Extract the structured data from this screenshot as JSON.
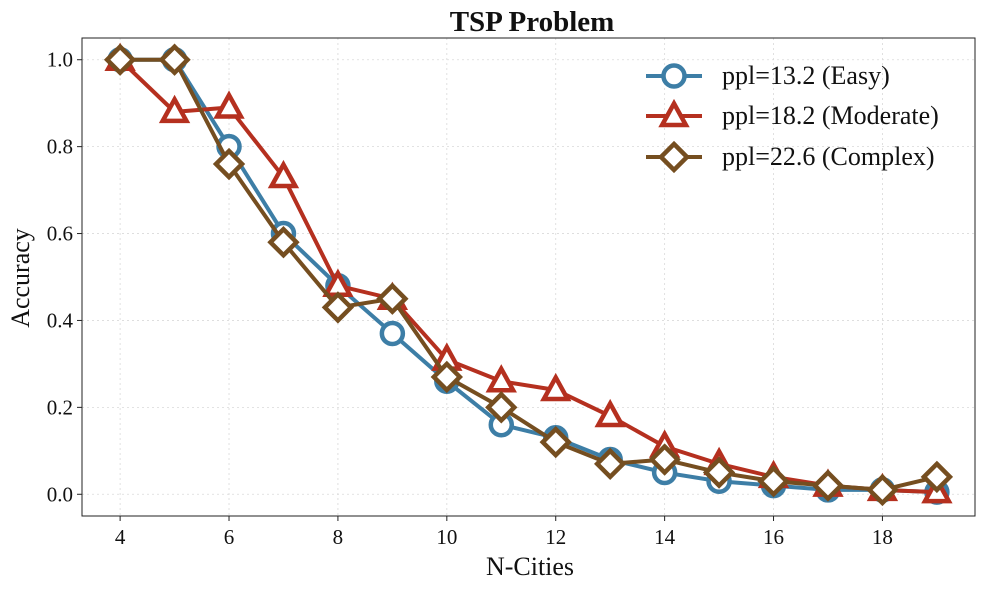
{
  "chart_data": {
    "type": "line",
    "title": "TSP Problem",
    "xlabel": "N-Cities",
    "ylabel": "Accuracy",
    "xlim": [
      3.3,
      19.7
    ],
    "ylim": [
      -0.05,
      1.05
    ],
    "xticks": [
      4,
      6,
      8,
      10,
      12,
      14,
      16,
      18
    ],
    "yticks": [
      0.0,
      0.2,
      0.4,
      0.6,
      0.8,
      1.0
    ],
    "xtick_labels": [
      "4",
      "6",
      "8",
      "10",
      "12",
      "14",
      "16",
      "18"
    ],
    "ytick_labels": [
      "0.0",
      "0.2",
      "0.4",
      "0.6",
      "0.8",
      "1.0"
    ],
    "grid": true,
    "legend_position": "top-right",
    "x": [
      4,
      5,
      6,
      7,
      8,
      9,
      10,
      11,
      12,
      13,
      14,
      15,
      16,
      17,
      18,
      19
    ],
    "series": [
      {
        "name": "ppl=13.2 (Easy)",
        "color": "#3d7ea6",
        "marker": "circle",
        "values": [
          1.0,
          1.0,
          0.8,
          0.6,
          0.48,
          0.37,
          0.26,
          0.16,
          0.13,
          0.08,
          0.05,
          0.03,
          0.02,
          0.01,
          0.01,
          0.005
        ]
      },
      {
        "name": "ppl=18.2 (Moderate)",
        "color": "#b5301f",
        "marker": "triangle",
        "values": [
          1.0,
          0.88,
          0.89,
          0.73,
          0.48,
          0.45,
          0.31,
          0.26,
          0.24,
          0.18,
          0.11,
          0.07,
          0.04,
          0.02,
          0.01,
          0.005
        ]
      },
      {
        "name": "ppl=22.6 (Complex)",
        "color": "#754e20",
        "marker": "diamond",
        "values": [
          1.0,
          1.0,
          0.76,
          0.58,
          0.43,
          0.45,
          0.27,
          0.2,
          0.12,
          0.07,
          0.08,
          0.05,
          0.03,
          0.02,
          0.01,
          0.04
        ]
      }
    ]
  }
}
